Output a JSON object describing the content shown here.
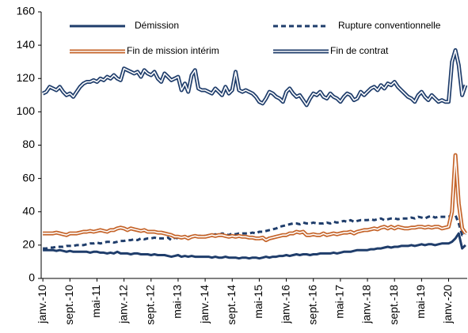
{
  "chart_data": {
    "type": "line",
    "categories": [
      "janv.-10",
      null,
      null,
      null,
      null,
      null,
      null,
      null,
      "sept.-10",
      null,
      null,
      null,
      null,
      null,
      null,
      null,
      "mai-11",
      null,
      null,
      null,
      null,
      null,
      null,
      null,
      "janv.-12",
      null,
      null,
      null,
      null,
      null,
      null,
      null,
      "sept.-12",
      null,
      null,
      null,
      null,
      null,
      null,
      null,
      "mai-13",
      null,
      null,
      null,
      null,
      null,
      null,
      null,
      "janv.-14",
      null,
      null,
      null,
      null,
      null,
      null,
      null,
      "sept.-14",
      null,
      null,
      null,
      null,
      null,
      null,
      null,
      "mai-15",
      null,
      null,
      null,
      null,
      null,
      null,
      null,
      "janv.-16",
      null,
      null,
      null,
      null,
      null,
      null,
      null,
      "sept.-16",
      null,
      null,
      null,
      null,
      null,
      null,
      null,
      "mai-17",
      null,
      null,
      null,
      null,
      null,
      null,
      null,
      "janv.-18",
      null,
      null,
      null,
      null,
      null,
      null,
      null,
      "sept.-18",
      null,
      null,
      null,
      null,
      null,
      null,
      null,
      "mai-19",
      null,
      null,
      null,
      null,
      null,
      null,
      null,
      "janv.-20",
      null,
      null,
      null,
      null,
      null
    ],
    "series": [
      {
        "name": "Démission",
        "color": "#1f3d6b",
        "style": "solid",
        "values": [
          17,
          17,
          17,
          17,
          16.5,
          17,
          16.5,
          16,
          16.5,
          16,
          16,
          16,
          16,
          16,
          15.5,
          16,
          16,
          15.5,
          15.5,
          15,
          15.5,
          15,
          16,
          15,
          15,
          15,
          14.5,
          15,
          15,
          14.5,
          14.5,
          14.5,
          14,
          14.5,
          14,
          14,
          14,
          13.5,
          13,
          13.5,
          14,
          13,
          13.5,
          13,
          13.5,
          13,
          13,
          13,
          13,
          13,
          12.5,
          13,
          12.5,
          12.5,
          13,
          12.5,
          12.5,
          12.5,
          12,
          12.5,
          12.5,
          12,
          12.5,
          12.5,
          12,
          12.5,
          13,
          12.5,
          13,
          13,
          13.5,
          13.5,
          14,
          13.5,
          14,
          14.5,
          14,
          14.5,
          14.5,
          14,
          14.5,
          14.5,
          15,
          15,
          15,
          15,
          15.5,
          15,
          15.5,
          16,
          16,
          16,
          16.5,
          17,
          17,
          17,
          17,
          17.5,
          17.5,
          18,
          18,
          18.5,
          19,
          18.5,
          19,
          19,
          19.5,
          19.5,
          19.5,
          20,
          19.5,
          20,
          20.5,
          20,
          20.5,
          20.5,
          20,
          20.5,
          21,
          21,
          21,
          22,
          24,
          27,
          18,
          20
        ]
      },
      {
        "name": "Rupture conventionnelle",
        "color": "#1f3d6b",
        "style": "dashed",
        "values": [
          18,
          18,
          18.5,
          18.5,
          19,
          19,
          19,
          19.5,
          19.5,
          19.5,
          20,
          20,
          20,
          20.5,
          21,
          21,
          21.5,
          21,
          21.5,
          22,
          22,
          21.5,
          22,
          22.5,
          22.5,
          23,
          23,
          23.5,
          23,
          24,
          23.5,
          24,
          24,
          24.5,
          24,
          24,
          24,
          24.5,
          23,
          24.5,
          24,
          25,
          24.5,
          25,
          25,
          25,
          25.5,
          25.5,
          25.5,
          26,
          26,
          26.5,
          26,
          27,
          26.5,
          26,
          27,
          26.5,
          27,
          27,
          27,
          27,
          27.5,
          27,
          28,
          28,
          28.5,
          29,
          29.5,
          30,
          31,
          31.5,
          32,
          32.5,
          33,
          33,
          32.5,
          33.5,
          33,
          33,
          33.5,
          33,
          33,
          33,
          33.5,
          33,
          34,
          33.5,
          34,
          34.5,
          34,
          35,
          34,
          34.5,
          35,
          35,
          35,
          35.5,
          35,
          35.5,
          36,
          35,
          35.5,
          36,
          36,
          35.5,
          36,
          36,
          36,
          36.5,
          36,
          37,
          36.5,
          36,
          37,
          37.5,
          36.5,
          37,
          37,
          37,
          37,
          38,
          38,
          33,
          26,
          27
        ]
      },
      {
        "name": "Fin de mission intérim",
        "color": "#c5642a",
        "style": "double",
        "values": [
          27,
          27,
          27,
          27,
          27.5,
          27,
          26.5,
          26,
          27,
          27,
          27,
          27.5,
          28,
          28,
          28.5,
          28,
          28.5,
          29,
          28.5,
          28,
          29,
          29,
          30,
          30.5,
          30,
          29,
          30,
          29.5,
          29,
          28.5,
          29,
          28,
          28,
          28,
          27.5,
          27.5,
          27,
          26.5,
          26,
          25,
          25,
          24.5,
          25,
          24,
          25,
          25.5,
          25,
          25,
          25,
          25.5,
          26,
          25.5,
          26,
          26,
          25.5,
          25,
          25.5,
          25,
          25.5,
          25,
          25,
          24.5,
          24.5,
          24,
          24,
          24.5,
          23,
          24,
          24.5,
          25,
          25.5,
          26,
          26,
          27,
          27,
          28,
          27.5,
          28,
          26,
          26,
          26.5,
          26,
          26,
          27,
          26,
          26.5,
          27,
          26.5,
          27,
          27.5,
          27.5,
          28,
          27,
          28,
          28.5,
          29,
          29,
          29.5,
          30,
          29.5,
          30.5,
          31,
          30,
          31,
          30,
          31,
          30.5,
          30,
          30,
          30.5,
          30.5,
          31,
          31,
          30.5,
          31,
          30.5,
          31,
          31,
          30,
          30.5,
          31,
          40,
          74,
          45,
          30,
          27
        ]
      },
      {
        "name": "Fin de contrat",
        "color": "#1f3d6b",
        "style": "double",
        "values": [
          111,
          112,
          115,
          114,
          113,
          115,
          112,
          110,
          111,
          109,
          112,
          115,
          117,
          118,
          118,
          119,
          118,
          120,
          119,
          121,
          120,
          122,
          120,
          119,
          126,
          125,
          124,
          123,
          124,
          121,
          125,
          123,
          122,
          124,
          120,
          118,
          123,
          121,
          119,
          120,
          121,
          113,
          117,
          112,
          122,
          125,
          114,
          113,
          113,
          112,
          111,
          114,
          112,
          110,
          115,
          111,
          113,
          124,
          113,
          112,
          113,
          112,
          111,
          109,
          106,
          105,
          108,
          112,
          111,
          109,
          108,
          106,
          112,
          114,
          111,
          109,
          110,
          107,
          104,
          108,
          111,
          110,
          112,
          109,
          108,
          111,
          109,
          108,
          106,
          109,
          111,
          110,
          107,
          108,
          112,
          110,
          112,
          114,
          115,
          113,
          116,
          114,
          117,
          116,
          118,
          115,
          113,
          111,
          109,
          108,
          106,
          110,
          112,
          109,
          107,
          110,
          108,
          106,
          107,
          106,
          106,
          130,
          137,
          128,
          110,
          116
        ]
      }
    ],
    "ylim": [
      0,
      160
    ],
    "yticks": [
      0,
      20,
      40,
      60,
      80,
      100,
      120,
      140,
      160
    ],
    "grid": false
  }
}
